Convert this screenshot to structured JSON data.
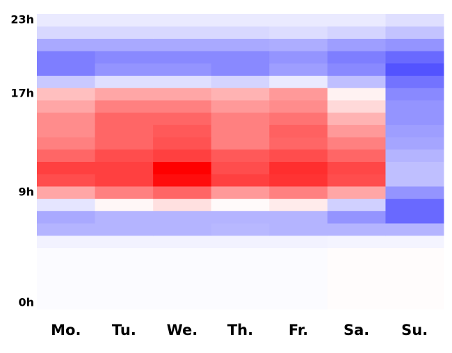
{
  "chart_data": {
    "type": "heatmap",
    "categories": [
      "Mo.",
      "Tu.",
      "We.",
      "Th.",
      "Fr.",
      "Sa.",
      "Su."
    ],
    "yticks": [
      {
        "value": 0,
        "label": "0h"
      },
      {
        "value": 9,
        "label": "9h"
      },
      {
        "value": 17,
        "label": "17h"
      },
      {
        "value": 23,
        "label": "23h"
      }
    ],
    "zlim": [
      -1,
      1
    ],
    "colors": [
      "#2828ff",
      "#ffffff",
      "#ff0000"
    ],
    "values": [
      [
        -0.02,
        -0.02,
        -0.02,
        -0.02,
        -0.02,
        0.01,
        0.01
      ],
      [
        -0.02,
        -0.02,
        -0.02,
        -0.02,
        -0.02,
        0.01,
        0.01
      ],
      [
        -0.02,
        -0.02,
        -0.02,
        -0.02,
        -0.02,
        0.01,
        0.01
      ],
      [
        -0.02,
        -0.02,
        -0.02,
        -0.02,
        -0.02,
        0.01,
        0.01
      ],
      [
        -0.02,
        -0.02,
        -0.02,
        -0.02,
        -0.02,
        0.01,
        0.01
      ],
      [
        -0.06,
        -0.06,
        -0.06,
        -0.06,
        -0.06,
        -0.05,
        -0.05
      ],
      [
        -0.35,
        -0.35,
        -0.35,
        -0.33,
        -0.35,
        -0.35,
        -0.35
      ],
      [
        -0.4,
        -0.35,
        -0.35,
        -0.35,
        -0.35,
        -0.5,
        -0.7
      ],
      [
        -0.12,
        0.03,
        0.12,
        0.02,
        0.08,
        -0.22,
        -0.7
      ],
      [
        0.35,
        0.5,
        0.6,
        0.4,
        0.5,
        0.35,
        -0.5
      ],
      [
        0.7,
        0.75,
        0.95,
        0.75,
        0.8,
        0.7,
        -0.3
      ],
      [
        0.75,
        0.75,
        1.0,
        0.7,
        0.82,
        0.72,
        -0.3
      ],
      [
        0.6,
        0.7,
        0.75,
        0.65,
        0.7,
        0.6,
        -0.35
      ],
      [
        0.5,
        0.6,
        0.68,
        0.5,
        0.6,
        0.5,
        -0.42
      ],
      [
        0.45,
        0.6,
        0.65,
        0.5,
        0.62,
        0.4,
        -0.45
      ],
      [
        0.45,
        0.6,
        0.6,
        0.5,
        0.55,
        0.3,
        -0.5
      ],
      [
        0.35,
        0.5,
        0.5,
        0.4,
        0.45,
        0.15,
        -0.5
      ],
      [
        0.25,
        0.35,
        0.35,
        0.3,
        0.4,
        0.05,
        -0.55
      ],
      [
        -0.25,
        -0.15,
        -0.15,
        -0.2,
        -0.1,
        -0.3,
        -0.65
      ],
      [
        -0.6,
        -0.5,
        -0.5,
        -0.55,
        -0.45,
        -0.55,
        -0.8
      ],
      [
        -0.6,
        -0.55,
        -0.55,
        -0.55,
        -0.5,
        -0.6,
        -0.7
      ],
      [
        -0.4,
        -0.4,
        -0.4,
        -0.4,
        -0.38,
        -0.45,
        -0.5
      ],
      [
        -0.18,
        -0.18,
        -0.18,
        -0.18,
        -0.16,
        -0.2,
        -0.28
      ],
      [
        -0.1,
        -0.1,
        -0.1,
        -0.1,
        -0.1,
        -0.1,
        -0.15
      ]
    ]
  }
}
